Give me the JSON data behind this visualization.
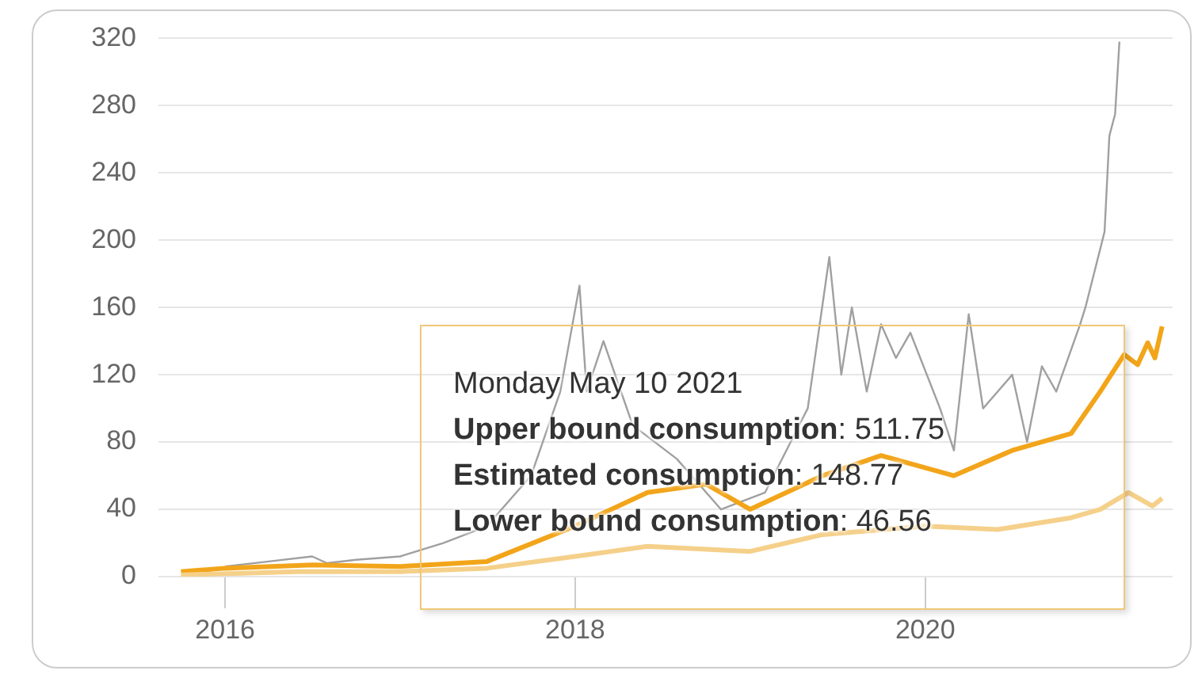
{
  "chart_data": {
    "type": "line",
    "annotations": [
      "Monday May 10 2021",
      "Upper bound consumption: 511.75",
      "Estimated consumption: 148.77",
      "Lower bound consumption: 46.56"
    ],
    "series": [
      {
        "color": "#a0a0a0",
        "x": [
          "2016-01",
          "2016-04",
          "2016-07",
          "2016-08",
          "2016-10",
          "2017-01",
          "2017-04",
          "2017-07",
          "2017-10",
          "2017-12",
          "2018-01-10",
          "2018-01-25",
          "2018-03",
          "2018-05",
          "2018-08",
          "2018-11",
          "2019-02",
          "2019-05",
          "2019-06-15",
          "2019-07-10",
          "2019-08",
          "2019-09",
          "2019-10",
          "2019-11",
          "2019-12",
          "2020-02",
          "2020-03",
          "2020-04",
          "2020-05",
          "2020-07",
          "2020-08",
          "2020-09",
          "2020-10",
          "2020-11-20",
          "2020-12",
          "2021-01-10",
          "2021-01-20",
          "2021-02-01",
          "2021-02-10"
        ],
        "values": [
          6,
          9,
          12,
          8,
          10,
          12,
          20,
          30,
          60,
          110,
          173,
          110,
          140,
          90,
          70,
          40,
          50,
          100,
          190,
          120,
          160,
          110,
          150,
          130,
          145,
          100,
          75,
          156,
          100,
          120,
          80,
          125,
          110,
          150,
          160,
          205,
          262,
          275,
          318
        ]
      },
      {
        "color": "#f2a51a",
        "x": [
          "2015-10",
          "2016-01",
          "2016-07",
          "2017-01",
          "2017-07",
          "2018-01",
          "2018-06",
          "2018-10",
          "2019-01",
          "2019-06",
          "2019-10",
          "2020-03",
          "2020-07",
          "2020-11",
          "2021-01",
          "2021-02-20",
          "2021-03-20",
          "2021-04-10",
          "2021-04-25",
          "2021-05-10"
        ],
        "values": [
          3,
          5,
          7,
          6,
          9,
          30,
          50,
          55,
          40,
          60,
          72,
          60,
          75,
          85,
          110,
          132,
          126,
          139,
          130,
          148.77
        ]
      },
      {
        "color": "#f5d08a",
        "x": [
          "2015-10",
          "2016-06",
          "2017-01",
          "2017-07",
          "2018-01",
          "2018-06",
          "2019-01",
          "2019-06",
          "2020-01",
          "2020-06",
          "2020-11",
          "2021-01",
          "2021-03",
          "2021-04-20",
          "2021-05-10"
        ],
        "values": [
          1,
          3,
          3,
          5,
          12,
          18,
          15,
          25,
          30,
          28,
          35,
          40,
          50,
          42,
          46.56
        ]
      }
    ],
    "xlim": [
      "2015-08-15",
      "2021-06-01"
    ],
    "xticks": [
      {
        "value": "2016-01-01",
        "label": "2016"
      },
      {
        "value": "2018-01-01",
        "label": "2018"
      },
      {
        "value": "2020-01-01",
        "label": "2020"
      }
    ],
    "ylim": [
      0,
      320
    ],
    "yticks": [
      0,
      40,
      80,
      120,
      160,
      200,
      240,
      280,
      320
    ],
    "grid": "y",
    "legend": false
  }
}
